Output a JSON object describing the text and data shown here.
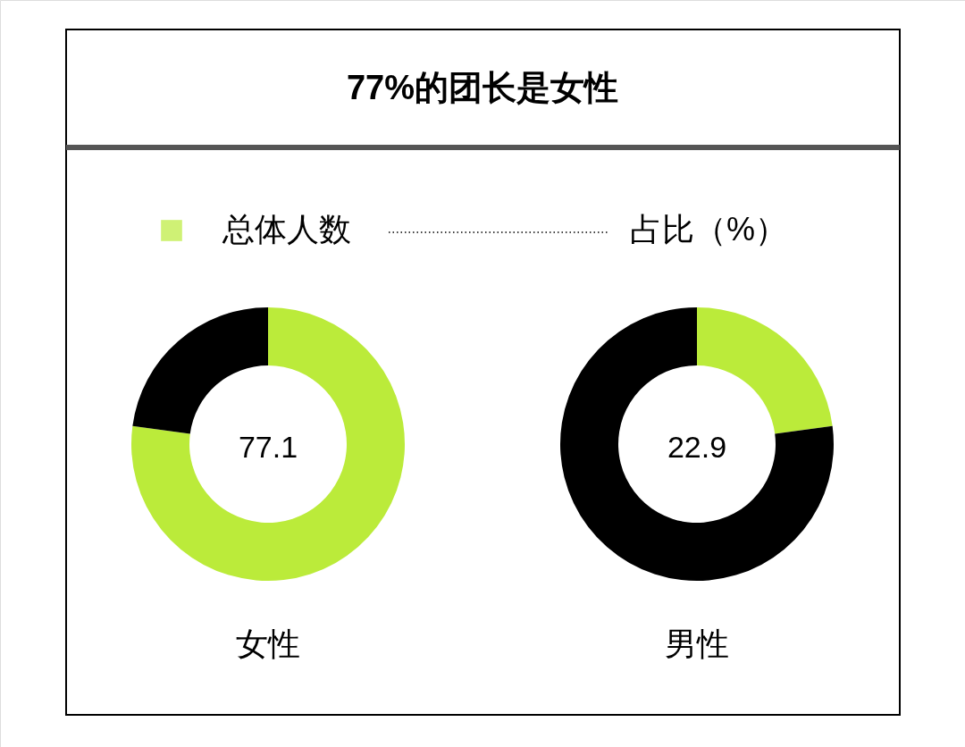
{
  "chart_data": [
    {
      "type": "donut",
      "title": "77%的团长是女性",
      "categories": [
        "总体人数",
        null
      ],
      "values": [
        77.1,
        22.9
      ],
      "colors": [
        "#bbeb3a",
        "#000000"
      ],
      "value_labels": [
        "77.1",
        null
      ],
      "xlabel": "女性",
      "legend": "top",
      "annotations": [
        "占比（%）"
      ]
    },
    {
      "type": "donut",
      "categories": [
        null,
        null
      ],
      "values": [
        22.9,
        77.1
      ],
      "colors": [
        "#bbeb3a",
        "#000000"
      ],
      "annotations": [
        "22.9"
      ],
      "xlabel": "男性"
    }
  ]
}
